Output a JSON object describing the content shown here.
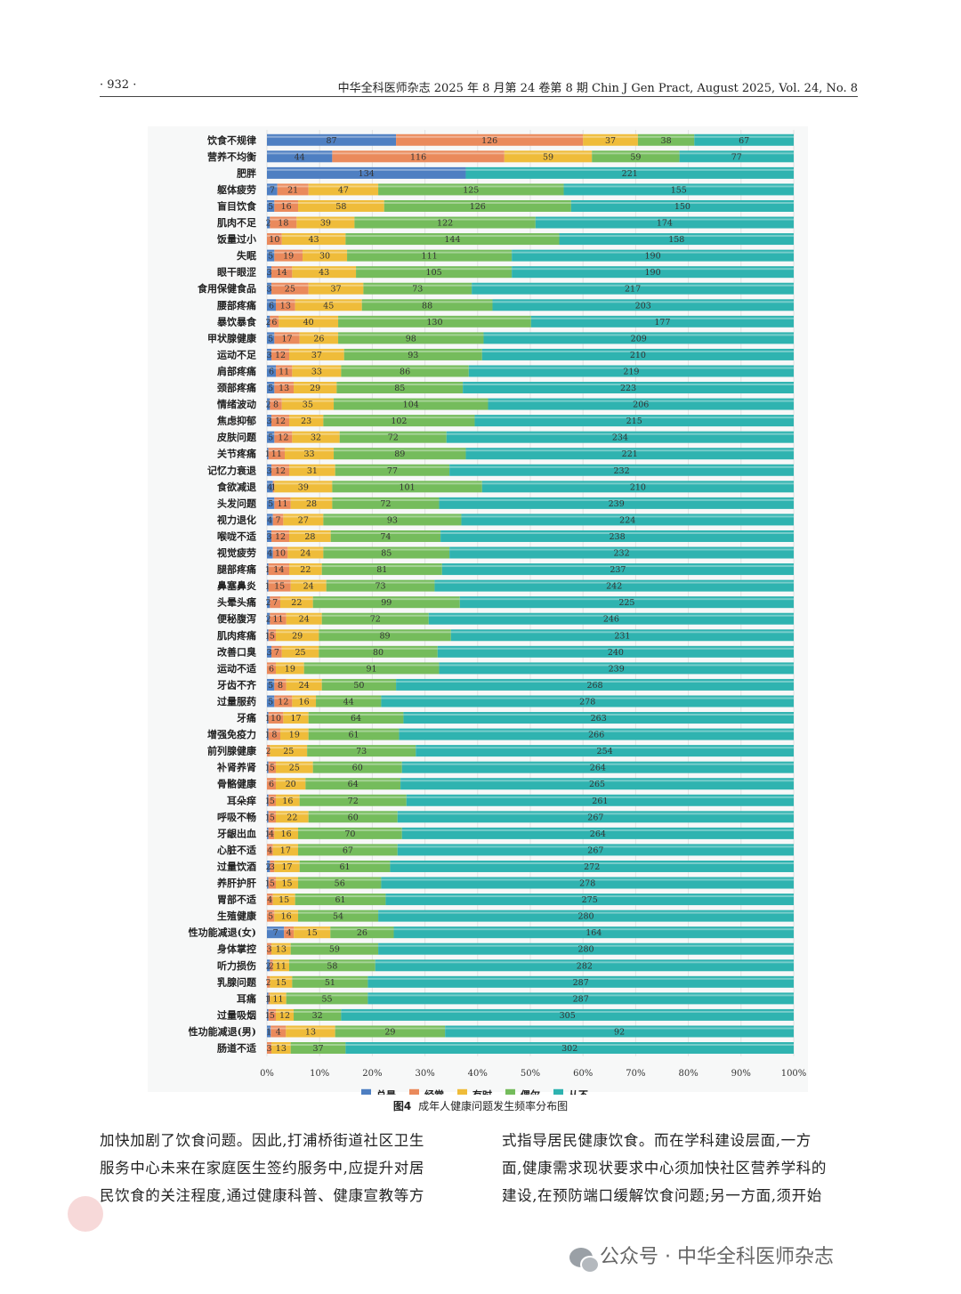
{
  "header": {
    "page": "· 932 ·",
    "journal": "中华全科医师杂志 2025 年 8 月第 24 卷第 8 期   Chin J Gen Pract, August 2025, Vol. 24, No. 8"
  },
  "chart_data": {
    "type": "bar",
    "orientation": "horizontal",
    "stacked": "percent",
    "series": [
      {
        "name": "总是",
        "color": "#4e7fc2"
      },
      {
        "name": "经常",
        "color": "#ea8a5c"
      },
      {
        "name": "有时",
        "color": "#efbc3a"
      },
      {
        "name": "偶尔",
        "color": "#75bc5c"
      },
      {
        "name": "从不",
        "color": "#2fb3b0"
      }
    ],
    "xticks": [
      "0%",
      "10%",
      "20%",
      "30%",
      "40%",
      "50%",
      "60%",
      "70%",
      "80%",
      "90%",
      "100%"
    ],
    "xlim": [
      0,
      100
    ],
    "legend_position": "bottom",
    "rows": [
      {
        "label": "饮食不规律",
        "values": [
          87,
          126,
          37,
          38,
          67
        ]
      },
      {
        "label": "营养不均衡",
        "values": [
          44,
          116,
          59,
          59,
          77
        ]
      },
      {
        "label": "肥胖",
        "values": [
          134,
          0,
          0,
          0,
          221
        ]
      },
      {
        "label": "躯体疲劳",
        "values": [
          7,
          21,
          47,
          125,
          155
        ]
      },
      {
        "label": "盲目饮食",
        "values": [
          5,
          16,
          58,
          126,
          150
        ]
      },
      {
        "label": "肌肉不足",
        "values": [
          2,
          18,
          39,
          122,
          174
        ]
      },
      {
        "label": "饭量过小",
        "values": [
          0,
          10,
          43,
          144,
          158
        ]
      },
      {
        "label": "失眠",
        "values": [
          5,
          19,
          30,
          111,
          190
        ]
      },
      {
        "label": "眼干眼涩",
        "values": [
          3,
          14,
          43,
          105,
          190
        ]
      },
      {
        "label": "食用保健食品",
        "values": [
          3,
          25,
          37,
          73,
          217
        ]
      },
      {
        "label": "腰部疼痛",
        "values": [
          6,
          13,
          45,
          88,
          203
        ]
      },
      {
        "label": "暴饮暴食",
        "values": [
          2,
          6,
          40,
          130,
          177
        ]
      },
      {
        "label": "甲状腺健康",
        "values": [
          5,
          17,
          26,
          98,
          209
        ]
      },
      {
        "label": "运动不足",
        "values": [
          3,
          12,
          37,
          93,
          210
        ]
      },
      {
        "label": "肩部疼痛",
        "values": [
          6,
          11,
          33,
          86,
          219
        ]
      },
      {
        "label": "颈部疼痛",
        "values": [
          5,
          13,
          29,
          85,
          223
        ]
      },
      {
        "label": "情绪波动",
        "values": [
          2,
          8,
          35,
          104,
          206
        ]
      },
      {
        "label": "焦虑抑郁",
        "values": [
          3,
          12,
          23,
          102,
          215
        ]
      },
      {
        "label": "皮肤问题",
        "values": [
          5,
          12,
          32,
          72,
          234
        ]
      },
      {
        "label": "关节疼痛",
        "values": [
          1,
          11,
          33,
          89,
          221
        ]
      },
      {
        "label": "记忆力衰退",
        "values": [
          3,
          12,
          31,
          77,
          232
        ]
      },
      {
        "label": "食欲减退",
        "values": [
          4,
          1,
          39,
          101,
          210
        ]
      },
      {
        "label": "头发问题",
        "values": [
          5,
          11,
          28,
          72,
          239
        ]
      },
      {
        "label": "视力退化",
        "values": [
          4,
          7,
          27,
          93,
          224
        ]
      },
      {
        "label": "喉咙不适",
        "values": [
          3,
          12,
          28,
          74,
          238
        ]
      },
      {
        "label": "视觉疲劳",
        "values": [
          4,
          10,
          24,
          85,
          232
        ]
      },
      {
        "label": "腿部疼痛",
        "values": [
          1,
          14,
          22,
          81,
          237
        ]
      },
      {
        "label": "鼻塞鼻炎",
        "values": [
          1,
          15,
          24,
          73,
          242
        ]
      },
      {
        "label": "头晕头痛",
        "values": [
          2,
          7,
          22,
          99,
          225
        ]
      },
      {
        "label": "便秘腹泻",
        "values": [
          2,
          11,
          24,
          72,
          246
        ]
      },
      {
        "label": "肌肉疼痛",
        "values": [
          1,
          5,
          29,
          89,
          231
        ]
      },
      {
        "label": "改善口臭",
        "values": [
          3,
          7,
          25,
          80,
          240
        ]
      },
      {
        "label": "运动不适",
        "values": [
          0,
          6,
          19,
          91,
          239
        ]
      },
      {
        "label": "牙齿不齐",
        "values": [
          5,
          8,
          24,
          50,
          268
        ]
      },
      {
        "label": "过量服药",
        "values": [
          5,
          12,
          16,
          44,
          278
        ]
      },
      {
        "label": "牙痛",
        "values": [
          1,
          10,
          17,
          64,
          263
        ]
      },
      {
        "label": "增强免疫力",
        "values": [
          1,
          8,
          19,
          61,
          266
        ]
      },
      {
        "label": "前列腺健康",
        "values": [
          0,
          2,
          25,
          73,
          254
        ]
      },
      {
        "label": "补肾养肾",
        "values": [
          1,
          5,
          25,
          60,
          264
        ]
      },
      {
        "label": "骨骼健康",
        "values": [
          0,
          6,
          20,
          64,
          265
        ]
      },
      {
        "label": "耳朵痒",
        "values": [
          1,
          5,
          16,
          72,
          261
        ]
      },
      {
        "label": "呼吸不畅",
        "values": [
          1,
          5,
          22,
          60,
          267
        ]
      },
      {
        "label": "牙龈出血",
        "values": [
          1,
          4,
          16,
          70,
          264
        ]
      },
      {
        "label": "心脏不适",
        "values": [
          0,
          4,
          17,
          67,
          267
        ]
      },
      {
        "label": "过量饮酒",
        "values": [
          2,
          3,
          17,
          61,
          272
        ]
      },
      {
        "label": "养肝护肝",
        "values": [
          1,
          5,
          15,
          56,
          278
        ]
      },
      {
        "label": "胃部不适",
        "values": [
          0,
          4,
          15,
          61,
          275
        ]
      },
      {
        "label": "生殖健康",
        "values": [
          0,
          5,
          16,
          54,
          280
        ]
      },
      {
        "label": "性功能减退(女)",
        "values": [
          7,
          4,
          15,
          26,
          164
        ]
      },
      {
        "label": "身体掌控",
        "values": [
          0,
          3,
          13,
          59,
          280
        ]
      },
      {
        "label": "听力损伤",
        "values": [
          2,
          2,
          11,
          58,
          282
        ]
      },
      {
        "label": "乳腺问题",
        "values": [
          0,
          2,
          15,
          51,
          287
        ]
      },
      {
        "label": "耳痛",
        "values": [
          1,
          1,
          11,
          55,
          287
        ]
      },
      {
        "label": "过量吸烟",
        "values": [
          1,
          5,
          12,
          32,
          305
        ]
      },
      {
        "label": "性功能减退(男)",
        "values": [
          1,
          4,
          13,
          29,
          92
        ]
      },
      {
        "label": "肠道不适",
        "values": [
          0,
          3,
          13,
          37,
          302
        ]
      }
    ]
  },
  "caption": {
    "figure": "图4",
    "text": "成年人健康问题发生频率分布图"
  },
  "body": {
    "col1": [
      "加快加剧了饮食问题。因此,打浦桥街道社区卫生",
      "服务中心未来在家庭医生签约服务中,应提升对居",
      "民饮食的关注程度,通过健康科普、健康宣教等方"
    ],
    "col2": [
      "式指导居民健康饮食。而在学科建设层面,一方",
      "面,健康需求现状要求中心须加快社区营养学科的",
      "建设,在预防端口缓解饮食问题;另一方面,须开始"
    ]
  },
  "footer": {
    "text": "公众号 · 中华全科医师杂志",
    "icon": "wechat-icon"
  }
}
